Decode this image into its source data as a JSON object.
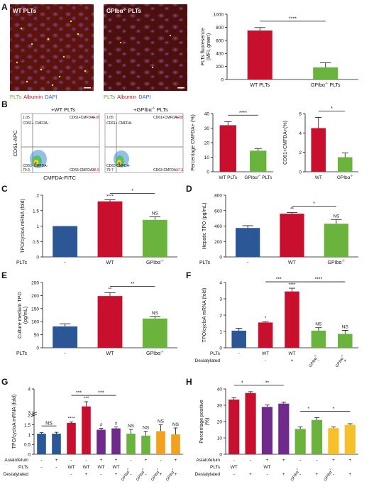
{
  "panels": {
    "A": "A",
    "B": "B",
    "C": "C",
    "D": "D",
    "E": "E",
    "F": "F",
    "G": "G",
    "H": "H"
  },
  "micro_a": {
    "wt_title": "WT PLTs",
    "gp_title": "GPIbα",
    "gp_title_sup": "-/-",
    "gp_title_end": " PLTs",
    "legend": {
      "plts": "PLTs",
      "albumin": "Albumin",
      "dapi": "DAPI"
    }
  },
  "flow_b": {
    "wt_title": "+WT PLTs",
    "gp_title": "+GPIbα",
    "gp_title_sup": "-/-",
    "gp_title_end": " PLTs",
    "ylabel": "CD61-APC",
    "xlabel": "CMFDA-FITC",
    "wt_quads": {
      "ul": "CD61+ CMFDA-",
      "ur": "CD61+CMFDA+",
      "ll": "CD63- CMFDA-",
      "lr": "CD63-CMFDA+"
    },
    "wt_vals": {
      "ul": "1.05",
      "ur": "4.18",
      "ll": "70.3",
      "lr": "28.6"
    },
    "gp_quads": {
      "ul": "CD61+ CMFDA-",
      "ur": "CD61+CMFDA+",
      "ll": "CD63 CMFDA-",
      "lr": "CD63-CMFDA+"
    },
    "gp_vals": {
      "ul": "1.05",
      "ur": "1.88",
      "ll": "79.7",
      "lr": "17.3"
    }
  },
  "colors": {
    "wt": "#c8102e",
    "gp": "#6ab43e",
    "ctrl": "#2b5797",
    "purple": "#6f2a8c",
    "orange": "#f2a01e",
    "yellow": "#f6c02b",
    "axis": "#111111"
  },
  "chart_data": [
    {
      "panel": "A-right",
      "type": "bar",
      "categories": [
        "WT PLTs",
        "GPIbα-/- PLTs"
      ],
      "values": [
        750,
        185
      ],
      "errors": [
        45,
        70
      ],
      "ylabel": "PLTs fluoresence (MFI, green)",
      "ylim": [
        0,
        1000
      ],
      "yticks": [
        0,
        200,
        400,
        600,
        800,
        1000
      ],
      "significance": [
        {
          "from": 0,
          "to": 1,
          "label": "****"
        }
      ]
    },
    {
      "panel": "B-middle",
      "type": "bar",
      "categories": [
        "WT PLTs",
        "GPIbα-/- PLTs"
      ],
      "values": [
        32,
        14.5
      ],
      "errors": [
        2.5,
        1.5
      ],
      "ylabel": "Percentage CMFDA+ (%)",
      "ylim": [
        0,
        40
      ],
      "yticks": [
        0,
        10,
        20,
        30,
        40
      ],
      "significance": [
        {
          "from": 0,
          "to": 1,
          "label": "****"
        }
      ]
    },
    {
      "panel": "B-right",
      "type": "bar",
      "categories": [
        "WT",
        "GPIbα-/-"
      ],
      "values": [
        4.5,
        1.5
      ],
      "errors": [
        1.1,
        0.45
      ],
      "ylabel": "CD61+CMFDA+(%)",
      "ylim": [
        0,
        6
      ],
      "yticks": [
        0,
        2,
        4,
        6
      ],
      "significance": [
        {
          "from": 0,
          "to": 1,
          "label": "*"
        }
      ]
    },
    {
      "panel": "C",
      "type": "bar",
      "row_label": "PLTs",
      "categories": [
        "-",
        "WT",
        "GPIbα-/-"
      ],
      "values": [
        1.0,
        1.8,
        1.2
      ],
      "errors": [
        0,
        0.05,
        0.1
      ],
      "bar_labels": [
        "",
        "****",
        "NS"
      ],
      "ylabel": "TPO/cycloA mRNA (fold)",
      "ylim": [
        0,
        2.0
      ],
      "yticks": [
        0,
        0.5,
        1.0,
        1.5,
        2.0
      ],
      "significance": [
        {
          "from": 1,
          "to": 2,
          "label": "*"
        }
      ]
    },
    {
      "panel": "D",
      "type": "bar",
      "row_label": "PLTs",
      "categories": [
        "-",
        "WT",
        "GPIbα-/-"
      ],
      "values": [
        375,
        560,
        430
      ],
      "errors": [
        30,
        15,
        55
      ],
      "bar_labels": [
        "",
        "**",
        "NS"
      ],
      "ylabel": "Hepatic TPO (pg/mL)",
      "ylim": [
        0,
        800
      ],
      "yticks": [
        0,
        200,
        400,
        600,
        800
      ],
      "significance": [
        {
          "from": 1,
          "to": 2,
          "label": "*"
        }
      ]
    },
    {
      "panel": "E",
      "type": "bar",
      "row_label": "PLTs",
      "categories": [
        "-",
        "WT",
        "GPIbα-/-"
      ],
      "values": [
        82,
        198,
        112
      ],
      "errors": [
        10,
        13,
        8
      ],
      "bar_labels": [
        "",
        "**",
        "NS"
      ],
      "ylabel": "Culture medium TPO (pg/mL)",
      "ylim": [
        0,
        250
      ],
      "yticks": [
        0,
        50,
        100,
        150,
        200,
        250
      ],
      "significance": [
        {
          "from": 1,
          "to": 2,
          "label": "**"
        }
      ]
    },
    {
      "panel": "F",
      "type": "bar",
      "rows": [
        {
          "label": "PLTs",
          "values": [
            "-",
            "WT",
            "WT",
            "GPIbα-/-",
            "GPIbα-/-"
          ]
        },
        {
          "label": "Desialylated",
          "values": [
            "",
            "-",
            "+",
            "-",
            "+"
          ]
        }
      ],
      "values": [
        1.05,
        1.55,
        3.45,
        1.05,
        0.85
      ],
      "errors": [
        0.15,
        0.05,
        0.2,
        0.18,
        0.22
      ],
      "bar_labels": [
        "",
        "*",
        "****",
        "NS",
        "NS"
      ],
      "ylabel": "TPO/cycloA mRNA (fold)",
      "ylim": [
        0,
        4
      ],
      "yticks": [
        0,
        1,
        2,
        3,
        4
      ],
      "significance": [
        {
          "from": 1,
          "to": 2,
          "label": "***"
        },
        {
          "from": 2,
          "to": 4,
          "label": "****"
        }
      ]
    },
    {
      "panel": "G",
      "type": "bar",
      "rows": [
        {
          "label": "Asialofetuin",
          "values": [
            "-",
            "+",
            "-",
            "-",
            "+",
            "+",
            "-",
            "+",
            "-",
            "+"
          ]
        },
        {
          "label": "PLTs",
          "values": [
            "-",
            "-",
            "WT",
            "WT",
            "WT",
            "WT",
            "GPIbα-/-",
            "GPIbα-/-",
            "GPIbα-/-",
            "GPIbα-/-"
          ]
        },
        {
          "label": "Desialylated",
          "values": [
            "",
            "",
            "-",
            "+",
            "-",
            "+",
            "-",
            "-",
            "+",
            "+"
          ]
        }
      ],
      "values": [
        1.05,
        1.05,
        1.6,
        3.25,
        1.25,
        1.32,
        1.05,
        0.95,
        1.18,
        1.02
      ],
      "errors": [
        0.05,
        0.07,
        0.05,
        0.2,
        0.07,
        0.08,
        0.22,
        0.22,
        0.32,
        0.32
      ],
      "bar_labels": [
        "",
        "",
        "****",
        "***",
        "#",
        "#",
        "NS",
        "NS",
        "NS",
        "NS"
      ],
      "ylabel": "TPO/cycloA mRNA (fold)",
      "yticks": [
        0,
        0.5,
        1.0,
        1.5,
        2.0,
        3,
        4
      ],
      "axis_break": [
        2.0,
        3
      ],
      "significance": [
        {
          "from": 0,
          "to": 1,
          "label": "NS"
        },
        {
          "from": 2,
          "to": 3,
          "label": "***"
        },
        {
          "from": 3,
          "to": 5,
          "label": "***"
        }
      ]
    },
    {
      "panel": "H",
      "type": "bar",
      "rows": [
        {
          "label": "Asialofetuin",
          "values": [
            "-",
            "-",
            "+",
            "+",
            "-",
            "-",
            "+",
            "+"
          ]
        },
        {
          "label": "PLTs",
          "values": [
            "WT",
            "",
            "WT",
            "",
            "GPIbα-/-",
            "",
            "GPIbα-/-",
            ""
          ]
        },
        {
          "label": "Desialylated",
          "values": [
            "-",
            "+",
            "-",
            "+",
            "-",
            "+",
            "-",
            "+"
          ]
        }
      ],
      "values": [
        33.5,
        37.5,
        29,
        31,
        15.5,
        21,
        16,
        18
      ],
      "errors": [
        1.2,
        0.8,
        1.2,
        1.0,
        1.3,
        1.4,
        0.8,
        0.7
      ],
      "ylabel": "Percentage positive (%)",
      "ylim": [
        0,
        40
      ],
      "yticks": [
        0,
        10,
        20,
        30,
        40
      ],
      "significance": [
        {
          "from": 0,
          "to": 1,
          "label": "*"
        },
        {
          "from": 1,
          "to": 3,
          "label": "**"
        },
        {
          "from": 4,
          "to": 5,
          "label": "*"
        },
        {
          "from": 5,
          "to": 7,
          "label": "*"
        }
      ]
    }
  ]
}
